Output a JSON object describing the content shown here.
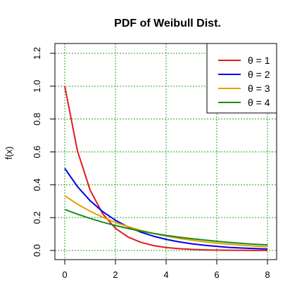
{
  "chart_data": {
    "type": "line",
    "title": "PDF of Weibull Dist.",
    "xlabel": "",
    "ylabel": "f(x)",
    "xlim": [
      0,
      8
    ],
    "ylim": [
      0,
      1.2
    ],
    "x_ticks": [
      0,
      2,
      4,
      6,
      8
    ],
    "y_ticks": [
      0.0,
      0.2,
      0.4,
      0.6,
      0.8,
      1.0,
      1.2
    ],
    "x_tick_labels": [
      "0",
      "2",
      "4",
      "6",
      "8"
    ],
    "y_tick_labels": [
      "0.0",
      "0.2",
      "0.4",
      "0.6",
      "0.8",
      "1.0",
      "1.2"
    ],
    "grid": true,
    "legend_position": "top-right",
    "x": [
      0,
      0.5,
      1,
      1.5,
      2,
      2.5,
      3,
      3.5,
      4,
      4.5,
      5,
      5.5,
      6,
      6.5,
      7,
      7.5,
      8
    ],
    "series": [
      {
        "name": "θ = 1",
        "color": "#e41a1c",
        "values": [
          1.0,
          0.607,
          0.368,
          0.223,
          0.135,
          0.082,
          0.05,
          0.03,
          0.018,
          0.011,
          0.007,
          0.004,
          0.002,
          0.0015,
          0.0009,
          0.0006,
          0.0003
        ]
      },
      {
        "name": "θ = 2",
        "color": "#0000ee",
        "values": [
          0.5,
          0.389,
          0.303,
          0.236,
          0.184,
          0.143,
          0.112,
          0.087,
          0.068,
          0.053,
          0.041,
          0.032,
          0.025,
          0.019,
          0.015,
          0.012,
          0.009
        ]
      },
      {
        "name": "θ = 3",
        "color": "#e6a000",
        "values": [
          0.333,
          0.282,
          0.239,
          0.202,
          0.171,
          0.145,
          0.123,
          0.104,
          0.088,
          0.074,
          0.063,
          0.053,
          0.045,
          0.038,
          0.032,
          0.027,
          0.023
        ]
      },
      {
        "name": "θ = 4",
        "color": "#1a8a1a",
        "values": [
          0.25,
          0.221,
          0.195,
          0.172,
          0.152,
          0.134,
          0.118,
          0.104,
          0.092,
          0.081,
          0.072,
          0.064,
          0.056,
          0.049,
          0.043,
          0.038,
          0.034
        ]
      }
    ]
  }
}
